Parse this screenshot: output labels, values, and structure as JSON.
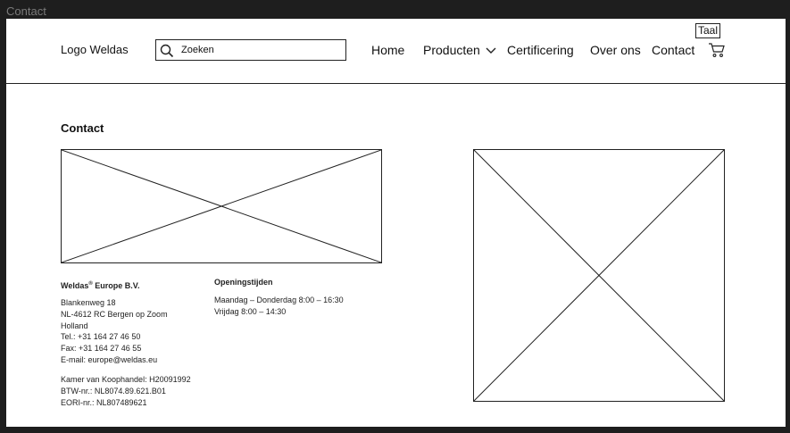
{
  "frame": {
    "title": "Contact"
  },
  "header": {
    "logo": "Logo Weldas",
    "search_placeholder": "Zoeken",
    "nav": {
      "home": "Home",
      "producten": "Producten",
      "certificering": "Certificering",
      "over_ons": "Over ons",
      "contact": "Contact"
    },
    "taal": "Taal"
  },
  "main": {
    "title": "Contact",
    "company": {
      "name": "Weldas",
      "registered": "®",
      "suffix": " Europe B.V.",
      "address": [
        "Blankenweg 18",
        "NL-4612 RC Bergen op Zoom",
        "Holland",
        "Tel.: +31 164 27 46 50",
        "Fax: +31 164 27 46 55",
        "E-mail: europe@weldas.eu"
      ],
      "registration": [
        "Kamer van Koophandel: H20091992",
        "BTW-nr.: NL8074.89.621.B01",
        "EORI-nr.: NL807489621"
      ]
    },
    "hours": {
      "title": "Openingstijden",
      "lines": [
        "Maandag – Donderdag 8:00 – 16:30",
        "Vrijdag 8:00 – 14:30"
      ]
    }
  }
}
